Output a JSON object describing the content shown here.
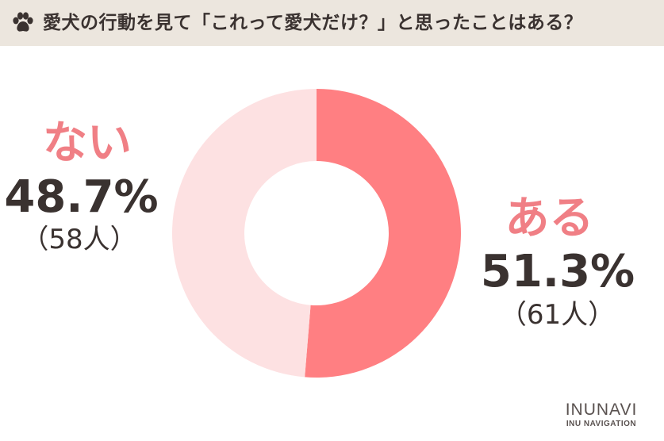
{
  "title": "愛犬の行動を見て「これって愛犬だけ？」と思ったことはある？",
  "brand": {
    "name": "INUNAVI",
    "tagline": "INU NAVIGATION"
  },
  "colors": {
    "header_bg": "#ece6de",
    "yes": "#ff7f82",
    "no": "#fde1e2",
    "label_accent": "#f07f85",
    "text": "#3a3230"
  },
  "chart_data": {
    "type": "pie",
    "style": "donut",
    "title": "愛犬の行動を見て「これって愛犬だけ？」と思ったことはある？",
    "slices": [
      {
        "label": "ある",
        "percent": 51.3,
        "count": 61,
        "percent_text": "51.3%",
        "count_text": "（61人）",
        "color": "#ff7f82"
      },
      {
        "label": "ない",
        "percent": 48.7,
        "count": 58,
        "percent_text": "48.7%",
        "count_text": "（58人）",
        "color": "#fde1e2"
      }
    ],
    "start_angle": "12 o'clock",
    "direction": "clockwise"
  }
}
